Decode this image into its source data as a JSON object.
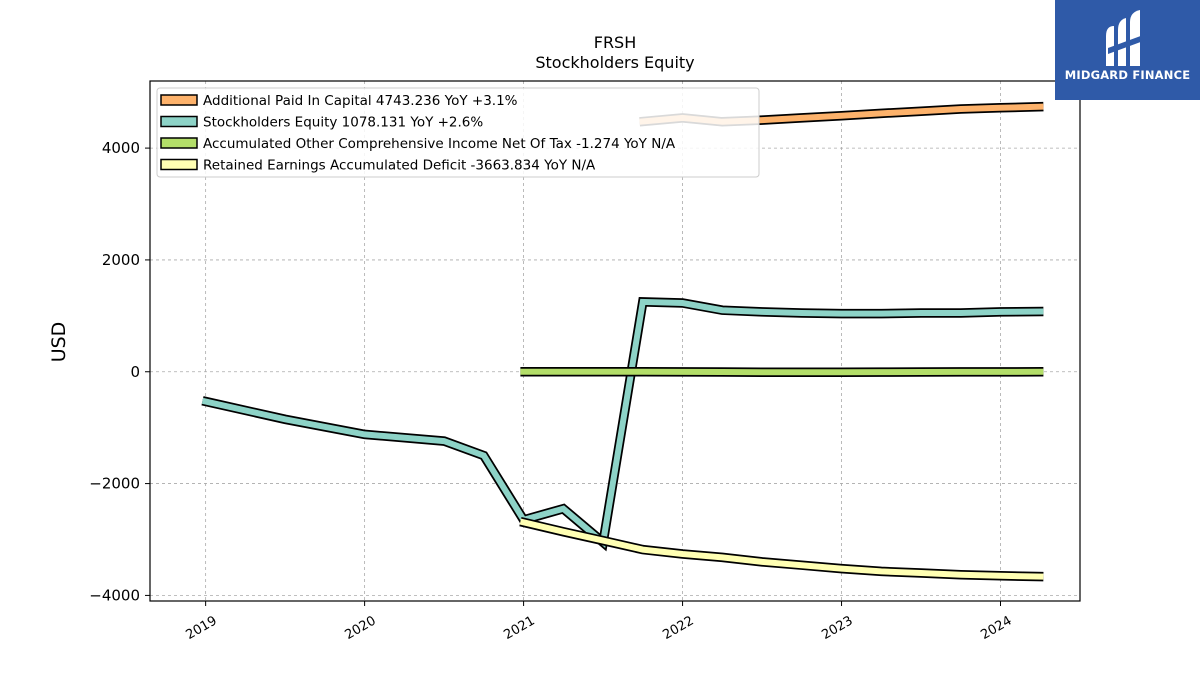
{
  "brand": {
    "name": "MIDGARD FINANCE",
    "color": "#2f5aa8"
  },
  "chart_data": {
    "type": "line",
    "title": "FRSH",
    "subtitle": "Stockholders  Equity",
    "xlabel": "",
    "ylabel": "USD",
    "xlim": [
      2018.65,
      2024.5
    ],
    "ylim": [
      -4100,
      5200
    ],
    "yticks": [
      -4000,
      -2000,
      0,
      2000,
      4000
    ],
    "ytick_labels": [
      "−4000",
      "−2000",
      "0",
      "2000",
      "4000"
    ],
    "xticks": [
      2019,
      2020,
      2021,
      2022,
      2023,
      2024
    ],
    "xtick_labels": [
      "2019",
      "2020",
      "2021",
      "2022",
      "2023",
      "2024"
    ],
    "grid": true,
    "legend_position": "top-left",
    "series": [
      {
        "name": "Additional Paid In Capital",
        "legend": "Additional Paid In Capital  4743.236 YoY +3.1%",
        "color": "#fdb26b",
        "x": [
          2021.73,
          2022.0,
          2022.25,
          2022.5,
          2022.75,
          2023.0,
          2023.25,
          2023.5,
          2023.75,
          2024.0,
          2024.27
        ],
        "y": [
          4470,
          4540,
          4470,
          4500,
          4540,
          4580,
          4620,
          4660,
          4700,
          4720,
          4743
        ]
      },
      {
        "name": "Stockholders Equity",
        "legend": "Stockholders Equity  1078.131 YoY +2.6%",
        "color": "#8dd3c7",
        "x": [
          2018.98,
          2019.5,
          2020.0,
          2020.5,
          2020.75,
          2021.0,
          2021.25,
          2021.5,
          2021.75,
          2022.0,
          2022.25,
          2022.5,
          2022.75,
          2023.0,
          2023.25,
          2023.5,
          2023.75,
          2024.0,
          2024.27
        ],
        "y": [
          -520,
          -850,
          -1120,
          -1240,
          -1500,
          -2650,
          -2450,
          -3050,
          1250,
          1230,
          1100,
          1070,
          1050,
          1040,
          1040,
          1050,
          1050,
          1070,
          1078
        ]
      },
      {
        "name": "Accumulated Other Comprehensive Income Net Of Tax",
        "legend": "Accumulated Other Comprehensive Income Net Of Tax  -1.274 YoY N/A",
        "color": "#b3de69",
        "x": [
          2020.98,
          2021.25,
          2021.5,
          2021.75,
          2022.0,
          2022.25,
          2022.5,
          2022.75,
          2023.0,
          2023.25,
          2023.5,
          2023.75,
          2024.0,
          2024.27
        ],
        "y": [
          0,
          0,
          0,
          0,
          -2,
          -5,
          -8,
          -10,
          -8,
          -6,
          -4,
          -3,
          -2,
          -1.274
        ]
      },
      {
        "name": "Retained Earnings Accumulated Deficit",
        "legend": "Retained Earnings Accumulated Deficit  -3663.834 YoY N/A",
        "color": "#ffffb3",
        "x": [
          2020.98,
          2021.25,
          2021.5,
          2021.75,
          2022.0,
          2022.25,
          2022.5,
          2022.75,
          2023.0,
          2023.25,
          2023.5,
          2023.75,
          2024.0,
          2024.27
        ],
        "y": [
          -2680,
          -2860,
          -3020,
          -3180,
          -3260,
          -3320,
          -3400,
          -3460,
          -3520,
          -3570,
          -3600,
          -3630,
          -3650,
          -3664
        ]
      }
    ]
  }
}
